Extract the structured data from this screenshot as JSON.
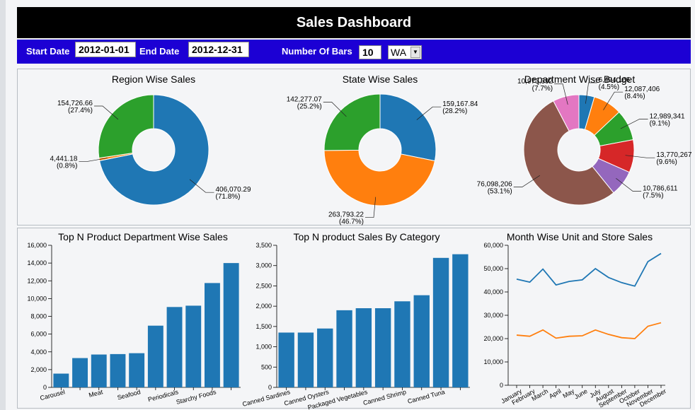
{
  "header": {
    "title": "Sales Dashboard"
  },
  "filters": {
    "start_label": "Start Date",
    "start_value": "2012-01-01",
    "end_label": "End Date",
    "end_value": "2012-12-31",
    "bars_label": "Number Of Bars",
    "bars_value": "10",
    "state_value": "WA"
  },
  "colors": {
    "blue": "#1f77b4",
    "orange": "#ff7f0e",
    "green": "#2ca02c",
    "red": "#d62728",
    "purple": "#9467bd",
    "brown": "#8c564b",
    "pink": "#e377c2",
    "title_bar": "#000000",
    "filter_bar": "#1c00d4"
  },
  "chart_data": [
    {
      "type": "pie",
      "title": "Region Wise Sales",
      "slices": [
        {
          "value": 406070.29,
          "label": "406,070.29",
          "pct": "(71.8%)",
          "color": "#1f77b4"
        },
        {
          "value": 4441.18,
          "label": "4,441.18",
          "pct": "(0.8%)",
          "color": "#ff7f0e"
        },
        {
          "value": 154726.66,
          "label": "154,726.66",
          "pct": "(27.4%)",
          "color": "#2ca02c"
        }
      ]
    },
    {
      "type": "pie",
      "title": "State Wise Sales",
      "slices": [
        {
          "value": 159167.84,
          "label": "159,167.84",
          "pct": "(28.2%)",
          "color": "#1f77b4"
        },
        {
          "value": 263793.22,
          "label": "263,793.22",
          "pct": "(46.7%)",
          "color": "#ff7f0e"
        },
        {
          "value": 142277.07,
          "label": "142,277.07",
          "pct": "(25.2%)",
          "color": "#2ca02c"
        }
      ]
    },
    {
      "type": "pie",
      "title": "Department Wise Budget",
      "slices": [
        {
          "value": 6494166,
          "label": "6,494,166",
          "pct": "(4.5%)",
          "color": "#1f77b4"
        },
        {
          "value": 12087406,
          "label": "12,087,406",
          "pct": "(8.4%)",
          "color": "#ff7f0e"
        },
        {
          "value": 12989341,
          "label": "12,989,341",
          "pct": "(9.1%)",
          "color": "#2ca02c"
        },
        {
          "value": 13770267,
          "label": "13,770,267",
          "pct": "(9.6%)",
          "color": "#d62728"
        },
        {
          "value": 10786611,
          "label": "10,786,611",
          "pct": "(7.5%)",
          "color": "#9467bd"
        },
        {
          "value": 76098206,
          "label": "76,098,206",
          "pct": "(53.1%)",
          "color": "#8c564b"
        },
        {
          "value": 10973392,
          "label": "10,973,392",
          "pct": "(7.7%)",
          "color": "#e377c2"
        }
      ]
    },
    {
      "type": "bar",
      "title": "Top N Product Department Wise Sales",
      "categories": [
        "Carousel",
        "",
        "Meat",
        "",
        "Seafood",
        "",
        "Periodicals",
        "",
        "Starchy Foods",
        ""
      ],
      "values": [
        1550,
        3300,
        3700,
        3750,
        3850,
        6950,
        9050,
        9200,
        11750,
        14000
      ],
      "ylim": [
        0,
        16000
      ],
      "yticks": [
        "0",
        "2,000",
        "4,000",
        "6,000",
        "8,000",
        "10,000",
        "12,000",
        "14,000",
        "16,000"
      ]
    },
    {
      "type": "bar",
      "title": "Top N product Sales By Category",
      "categories": [
        "Canned Sardines",
        "",
        "Canned Oysters",
        "",
        "Packaged Vegetables",
        "",
        "Canned Shrimp",
        "",
        "Canned Tuna",
        ""
      ],
      "values": [
        1350,
        1350,
        1450,
        1900,
        1950,
        1950,
        2120,
        2270,
        3190,
        3280
      ],
      "ylim": [
        0,
        3500
      ],
      "yticks": [
        "0",
        "500",
        "1,000",
        "1,500",
        "2,000",
        "2,500",
        "3,000",
        "3,500"
      ]
    },
    {
      "type": "line",
      "title": "Month Wise Unit and Store Sales",
      "categories": [
        "January",
        "February",
        "March",
        "April",
        "May",
        "June",
        "July",
        "August",
        "September",
        "October",
        "November",
        "December"
      ],
      "series": [
        {
          "values": [
            45500,
            44200,
            49800,
            43000,
            44500,
            45200,
            50000,
            46200,
            44000,
            42500,
            53000,
            56500
          ],
          "color": "#1f77b4"
        },
        {
          "values": [
            21500,
            21000,
            23700,
            20200,
            21000,
            21200,
            23700,
            21800,
            20400,
            20000,
            25300,
            26800
          ],
          "color": "#ff7f0e"
        }
      ],
      "ylim": [
        0,
        60000
      ],
      "yticks": [
        "0",
        "10,000",
        "20,000",
        "30,000",
        "40,000",
        "50,000",
        "60,000"
      ]
    }
  ]
}
